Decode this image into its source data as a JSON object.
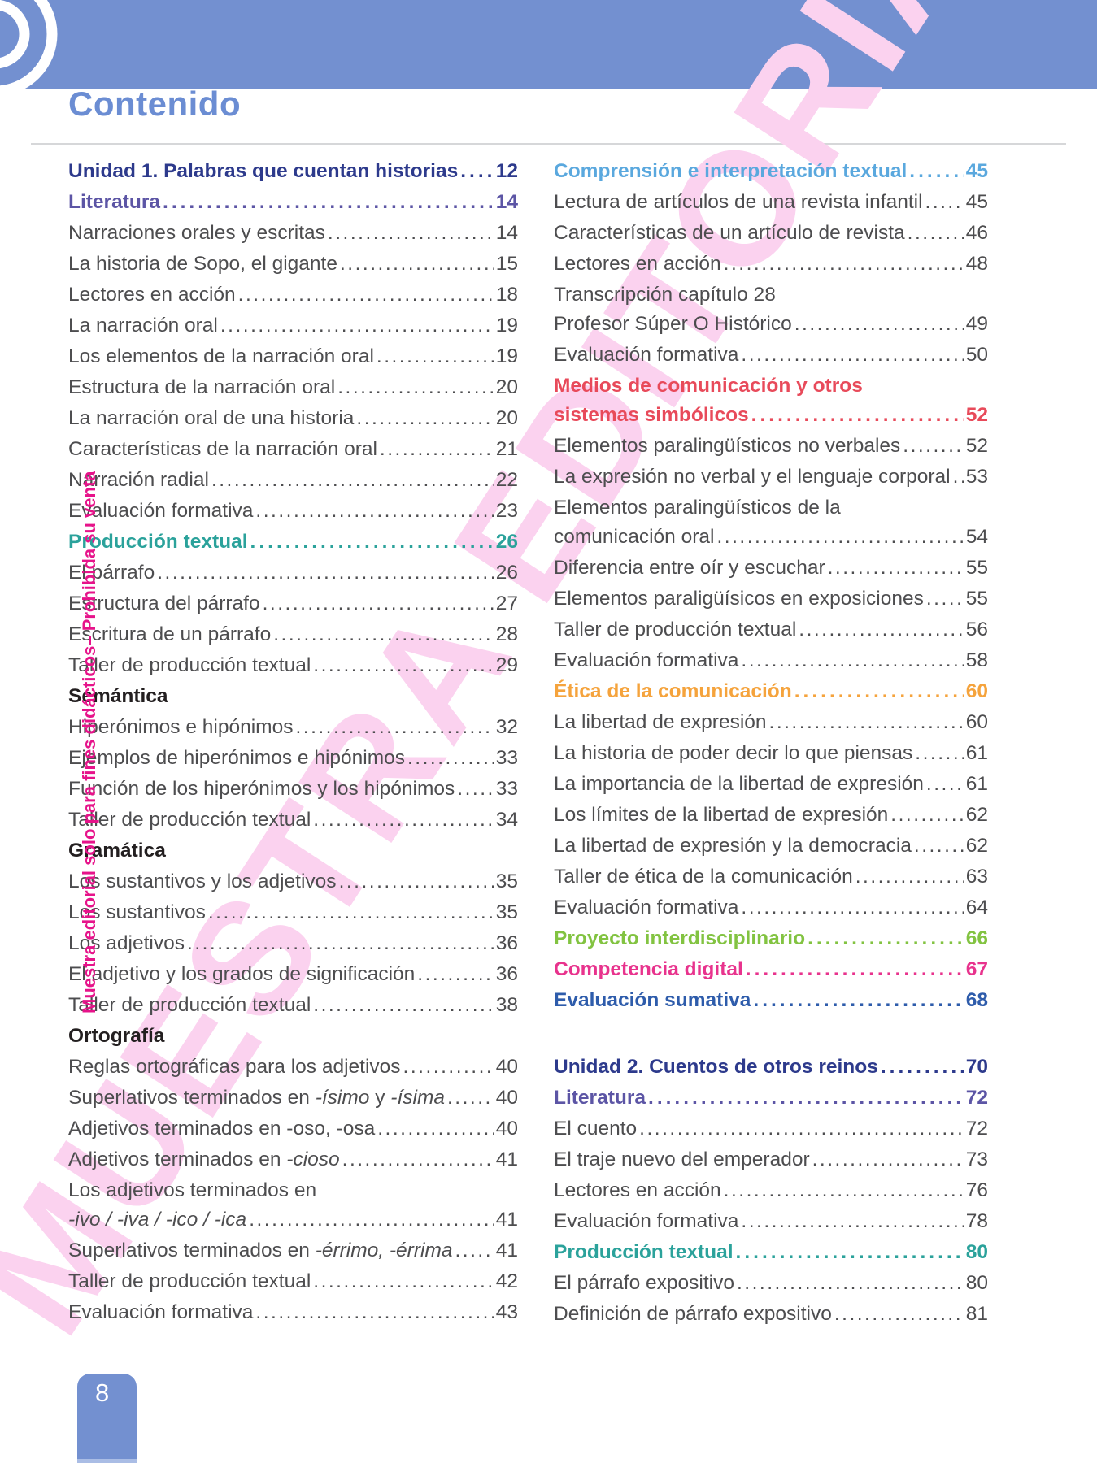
{
  "title": "Contenido",
  "watermark": "MUESTRA EDITORIAL",
  "sidebar_note": "Muestra editorial solo para fines didácticos– Prohibida su venta",
  "page_label": "8",
  "colors": {
    "body": "#4d4d4f",
    "subhead": "#231f20",
    "navy": "#2d3a8c",
    "purple": "#5c55a5",
    "teal": "#2ba29b",
    "lightblue": "#5aa8de",
    "red": "#e84a5a",
    "orange": "#f5a33c",
    "green": "#82c341",
    "magenta": "#e8338d",
    "blue": "#2e5cab",
    "band": "#7390d0",
    "title": "#6b8dd3",
    "watermark": "#fbd2ef",
    "sidebar_note": "#e6138a"
  },
  "left": {
    "entries": [
      {
        "label": "Unidad 1. Palabras que cuentan historias",
        "page": "12",
        "style": "navy"
      },
      {
        "label": "Literatura",
        "page": "14",
        "style": "purple"
      },
      {
        "label": "Narraciones orales y escritas",
        "page": "14"
      },
      {
        "label": "La historia de Sopo, el gigante",
        "page": "15"
      },
      {
        "label": "Lectores en acción",
        "page": "18"
      },
      {
        "label": "La narración oral",
        "page": "19"
      },
      {
        "label": "Los elementos de la narración oral",
        "page": "19"
      },
      {
        "label": "Estructura de la narración oral",
        "page": "20"
      },
      {
        "label": "La narración oral de una historia",
        "page": "20"
      },
      {
        "label": "Características de la narración oral",
        "page": "21"
      },
      {
        "label": "Narración radial",
        "page": "22"
      },
      {
        "label": "Evaluación formativa",
        "page": "23"
      },
      {
        "label": "Producción textual",
        "page": "26",
        "style": "teal"
      },
      {
        "label": "El párrafo",
        "page": "26"
      },
      {
        "label": "Estructura del párrafo",
        "page": "27"
      },
      {
        "label": "Escritura de un párrafo",
        "page": "28"
      },
      {
        "label": "Taller de producción textual",
        "page": "29"
      },
      {
        "label": "Semántica",
        "style": "subhead"
      },
      {
        "label": "Hiperónimos e hipónimos",
        "page": "32"
      },
      {
        "label": "Ejemplos de hiperónimos e hipónimos",
        "page": "33"
      },
      {
        "label": "Función de los hiperónimos y los hipónimos",
        "page": "33"
      },
      {
        "label": "Taller de producción textual",
        "page": "34"
      },
      {
        "label": "Gramática",
        "style": "subhead"
      },
      {
        "label": "Los sustantivos y los adjetivos",
        "page": "35"
      },
      {
        "label": "Los sustantivos",
        "page": "35"
      },
      {
        "label": "Los adjetivos",
        "page": "36"
      },
      {
        "label": "El adjetivo y los grados de significación",
        "page": "36"
      },
      {
        "label": "Taller de producción textual",
        "page": "38"
      },
      {
        "label": "Ortografía",
        "style": "subhead"
      },
      {
        "label": "Reglas ortográficas para los adjetivos",
        "page": "40"
      },
      {
        "segments": [
          {
            "t": "Superlativos terminados en "
          },
          {
            "t": "-ísimo",
            "i": true
          },
          {
            "t": " y "
          },
          {
            "t": "-ísima",
            "i": true
          }
        ],
        "page": "40"
      },
      {
        "label": "Adjetivos terminados en -oso, -osa",
        "page": "40"
      },
      {
        "segments": [
          {
            "t": "Adjetivos terminados en "
          },
          {
            "t": "-cioso",
            "i": true
          }
        ],
        "page": "41"
      },
      {
        "label_top": "Los adjetivos terminados en",
        "segments": [
          {
            "t": "-ivo / -iva / -ico / -ica ",
            "i": true
          }
        ],
        "page": "41"
      },
      {
        "segments": [
          {
            "t": "Superlativos terminados en "
          },
          {
            "t": "-érrimo, -érrima",
            "i": true
          }
        ],
        "page": "41"
      },
      {
        "label": "Taller de producción textual",
        "page": "42"
      },
      {
        "label": "Evaluación formativa",
        "page": "43"
      }
    ]
  },
  "right": {
    "entries": [
      {
        "label": "Comprensión e interpretación textual",
        "page": "45",
        "style": "lightblue"
      },
      {
        "label": "Lectura de artículos de una revista infantil",
        "page": "45"
      },
      {
        "label": "Características de un artículo de revista",
        "page": "46"
      },
      {
        "label": "Lectores en acción",
        "page": "48"
      },
      {
        "label_top": "Transcripción capítulo 28",
        "label": "Profesor Súper O Histórico",
        "page": "49"
      },
      {
        "label": "Evaluación formativa",
        "page": "50"
      },
      {
        "label_top": "Medios de comunicación y otros",
        "label": "sistemas simbólicos",
        "page": "52",
        "style": "red"
      },
      {
        "label": "Elementos paralingüísticos no verbales",
        "page": "52"
      },
      {
        "label": "La expresión no verbal y el lenguaje corporal",
        "page": "53"
      },
      {
        "label_top": "Elementos paralingüísticos de la",
        "label": "comunicación oral",
        "page": "54"
      },
      {
        "label": "Diferencia entre oír y escuchar",
        "page": "55"
      },
      {
        "label": "Elementos paraligüísicos en exposiciones",
        "page": "55"
      },
      {
        "label": "Taller de producción textual",
        "page": "56"
      },
      {
        "label": "Evaluación formativa",
        "page": "58"
      },
      {
        "label": "Ética de la comunicación",
        "page": "60",
        "style": "orange"
      },
      {
        "label": "La libertad de expresión",
        "page": "60"
      },
      {
        "label": "La historia de poder decir lo que piensas",
        "page": "61"
      },
      {
        "label": "La importancia de la libertad de expresión",
        "page": "61"
      },
      {
        "label": "Los límites de la libertad de expresión",
        "page": "62"
      },
      {
        "label": "La libertad de expresión y la democracia",
        "page": "62"
      },
      {
        "label": "Taller de ética de la comunicación",
        "page": "63"
      },
      {
        "label": "Evaluación formativa",
        "page": "64"
      },
      {
        "label": "Proyecto interdisciplinario",
        "page": "66",
        "style": "green"
      },
      {
        "label": "Competencia digital",
        "page": "67",
        "style": "magenta"
      },
      {
        "label": "Evaluación sumativa",
        "page": "68",
        "style": "blue"
      },
      {
        "label": "Unidad 2. Cuentos de otros reinos",
        "page": "70",
        "style": "navy",
        "gap_before": true
      },
      {
        "label": "Literatura",
        "page": "72",
        "style": "purple"
      },
      {
        "label": "El cuento",
        "page": "72"
      },
      {
        "label": "El traje nuevo del emperador",
        "page": "73"
      },
      {
        "label": "Lectores en acción",
        "page": "76"
      },
      {
        "label": "Evaluación formativa",
        "page": "78"
      },
      {
        "label": "Producción textual",
        "page": "80",
        "style": "teal"
      },
      {
        "label": "El párrafo expositivo",
        "page": "80"
      },
      {
        "label": "Definición de párrafo expositivo",
        "page": "81"
      }
    ]
  }
}
